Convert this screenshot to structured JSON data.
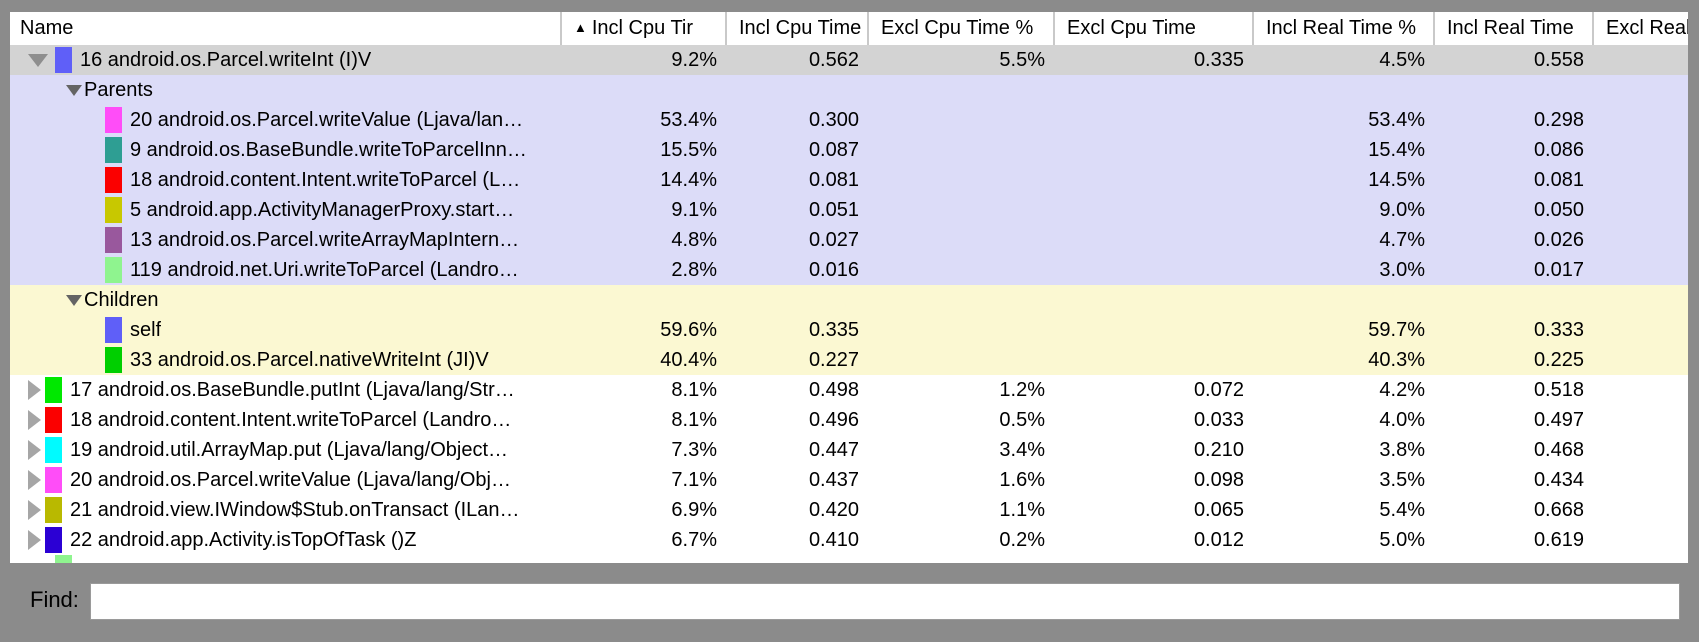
{
  "window": {
    "background": "#8b8b8b"
  },
  "table": {
    "sort_icon": "▲",
    "columns": [
      {
        "id": "name",
        "label": "Name",
        "sorted": false
      },
      {
        "id": "incl_cpu_pct",
        "label": "Incl Cpu Tir",
        "sorted": true
      },
      {
        "id": "incl_cpu_time",
        "label": "Incl Cpu Time",
        "sorted": false
      },
      {
        "id": "excl_cpu_pct",
        "label": "Excl Cpu Time %",
        "sorted": false
      },
      {
        "id": "excl_cpu_time",
        "label": "Excl Cpu Time",
        "sorted": false
      },
      {
        "id": "incl_real_pct",
        "label": "Incl Real Time %",
        "sorted": false
      },
      {
        "id": "incl_real_time",
        "label": "Incl Real Time",
        "sorted": false
      },
      {
        "id": "excl_real",
        "label": "Excl Real",
        "sorted": false
      }
    ],
    "colors": {
      "selected_row_bg": "#d3d3d3",
      "parents_section_bg": "#dcdcf8",
      "children_section_bg": "#fbf8d2",
      "default_row_bg": "#ffffff"
    },
    "rows": [
      {
        "type": "expanded",
        "section": "selected",
        "name": "16 android.os.Parcel.writeInt (I)V",
        "swatch": "#5f5ff8",
        "values": [
          "9.2%",
          "0.562",
          "5.5%",
          "0.335",
          "4.5%",
          "0.558",
          ""
        ]
      },
      {
        "type": "section",
        "section": "parents",
        "name": "Parents",
        "swatch": null,
        "values": [
          "",
          "",
          "",
          "",
          "",
          "",
          ""
        ]
      },
      {
        "type": "sub",
        "section": "parents",
        "name": "20 android.os.Parcel.writeValue (Ljava/lan…",
        "swatch": "#ff4df8",
        "values": [
          "53.4%",
          "0.300",
          "",
          "",
          "53.4%",
          "0.298",
          ""
        ]
      },
      {
        "type": "sub",
        "section": "parents",
        "name": "9 android.os.BaseBundle.writeToParcelInn…",
        "swatch": "#2e9e93",
        "values": [
          "15.5%",
          "0.087",
          "",
          "",
          "15.4%",
          "0.086",
          ""
        ]
      },
      {
        "type": "sub",
        "section": "parents",
        "name": "18 android.content.Intent.writeToParcel (L…",
        "swatch": "#fb0000",
        "values": [
          "14.4%",
          "0.081",
          "",
          "",
          "14.5%",
          "0.081",
          ""
        ]
      },
      {
        "type": "sub",
        "section": "parents",
        "name": "5 android.app.ActivityManagerProxy.start…",
        "swatch": "#c8c800",
        "values": [
          "9.1%",
          "0.051",
          "",
          "",
          "9.0%",
          "0.050",
          ""
        ]
      },
      {
        "type": "sub",
        "section": "parents",
        "name": "13 android.os.Parcel.writeArrayMapIntern…",
        "swatch": "#99589d",
        "values": [
          "4.8%",
          "0.027",
          "",
          "",
          "4.7%",
          "0.026",
          ""
        ]
      },
      {
        "type": "sub",
        "section": "parents",
        "name": "119 android.net.Uri.writeToParcel (Landro…",
        "swatch": "#8ff48f",
        "values": [
          "2.8%",
          "0.016",
          "",
          "",
          "3.0%",
          "0.017",
          ""
        ]
      },
      {
        "type": "section",
        "section": "children",
        "name": "Children",
        "swatch": null,
        "values": [
          "",
          "",
          "",
          "",
          "",
          "",
          ""
        ]
      },
      {
        "type": "sub",
        "section": "children",
        "name": "self",
        "swatch": "#5f5ff8",
        "values": [
          "59.6%",
          "0.335",
          "",
          "",
          "59.7%",
          "0.333",
          ""
        ]
      },
      {
        "type": "sub",
        "section": "children",
        "name": "33 android.os.Parcel.nativeWriteInt (JI)V",
        "swatch": "#00cf00",
        "values": [
          "40.4%",
          "0.227",
          "",
          "",
          "40.3%",
          "0.225",
          ""
        ]
      },
      {
        "type": "collapsed",
        "section": "top",
        "name": "17 android.os.BaseBundle.putInt (Ljava/lang/Str…",
        "swatch": "#00e800",
        "values": [
          "8.1%",
          "0.498",
          "1.2%",
          "0.072",
          "4.2%",
          "0.518",
          ""
        ]
      },
      {
        "type": "collapsed",
        "section": "top",
        "name": "18 android.content.Intent.writeToParcel (Landro…",
        "swatch": "#fb0000",
        "values": [
          "8.1%",
          "0.496",
          "0.5%",
          "0.033",
          "4.0%",
          "0.497",
          ""
        ]
      },
      {
        "type": "collapsed",
        "section": "top",
        "name": "19 android.util.ArrayMap.put (Ljava/lang/Object…",
        "swatch": "#00fbff",
        "values": [
          "7.3%",
          "0.447",
          "3.4%",
          "0.210",
          "3.8%",
          "0.468",
          ""
        ]
      },
      {
        "type": "collapsed",
        "section": "top",
        "name": "20 android.os.Parcel.writeValue (Ljava/lang/Obj…",
        "swatch": "#ff4df8",
        "values": [
          "7.1%",
          "0.437",
          "1.6%",
          "0.098",
          "3.5%",
          "0.434",
          ""
        ]
      },
      {
        "type": "collapsed",
        "section": "top",
        "name": "21 android.view.IWindow$Stub.onTransact (ILan…",
        "swatch": "#b9b900",
        "values": [
          "6.9%",
          "0.420",
          "1.1%",
          "0.065",
          "5.4%",
          "0.668",
          ""
        ]
      },
      {
        "type": "collapsed",
        "section": "top",
        "name": "22 android.app.Activity.isTopOfTask ()Z",
        "swatch": "#2b00d4",
        "values": [
          "6.7%",
          "0.410",
          "0.2%",
          "0.012",
          "5.0%",
          "0.619",
          ""
        ]
      }
    ],
    "partial_row_swatch": "#8ff48f"
  },
  "find_bar": {
    "label": "Find:",
    "value": ""
  }
}
